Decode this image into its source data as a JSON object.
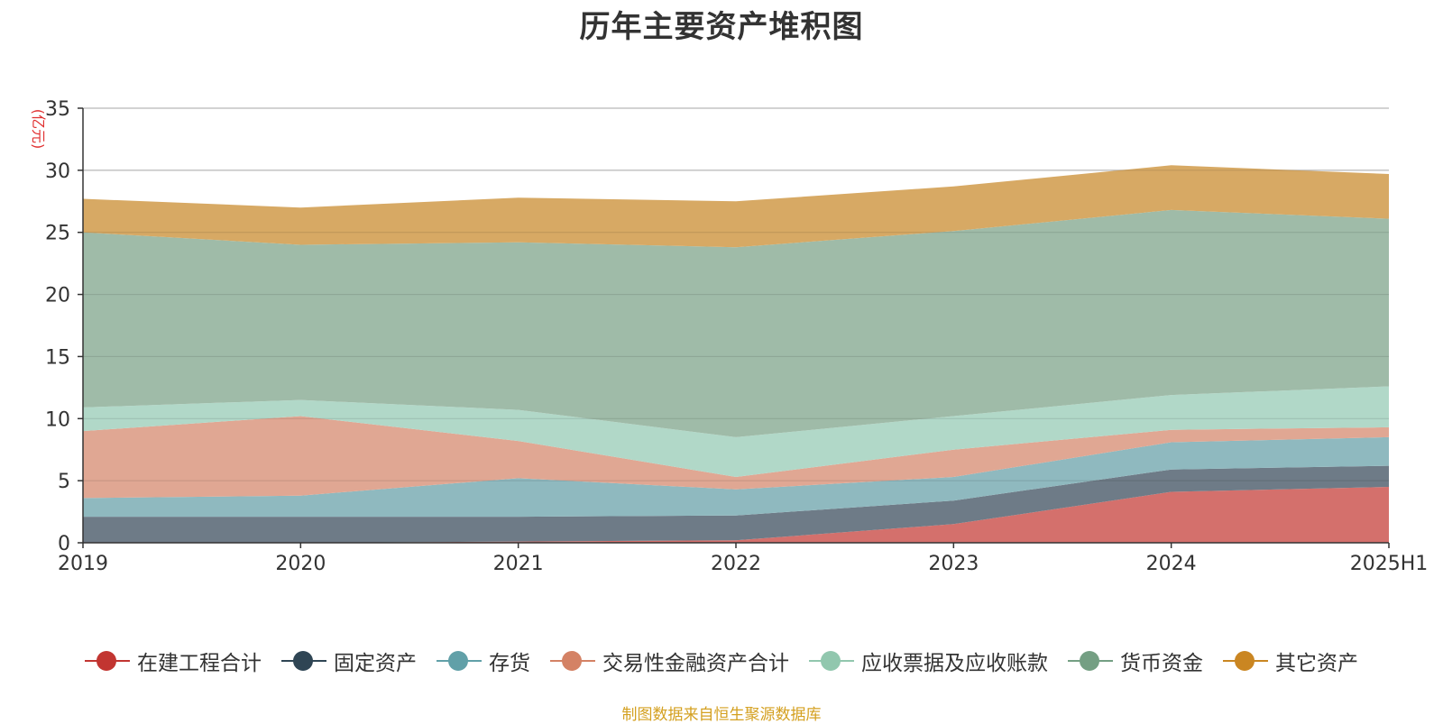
{
  "chart_data": {
    "type": "area",
    "stacked": true,
    "title": "历年主要资产堆积图",
    "ylabel": "(亿元)",
    "x": [
      "2019",
      "2020",
      "2021",
      "2022",
      "2023",
      "2024",
      "2025H1"
    ],
    "ylim": [
      0,
      35
    ],
    "yticks": [
      0,
      5,
      10,
      15,
      20,
      25,
      30,
      35
    ],
    "grid": true,
    "legend_position": "bottom",
    "series": [
      {
        "name": "在建工程合计",
        "color": "#c23531",
        "fill": "#d4706c",
        "values": [
          0.0,
          0.0,
          0.1,
          0.2,
          1.5,
          4.1,
          4.5
        ]
      },
      {
        "name": "固定资产",
        "color": "#2f4554",
        "fill": "#6e7b87",
        "values": [
          2.1,
          2.1,
          2.0,
          2.0,
          1.9,
          1.8,
          1.7
        ]
      },
      {
        "name": "存货",
        "color": "#61a0a8",
        "fill": "#8fb9bf",
        "values": [
          1.5,
          1.7,
          3.1,
          2.1,
          1.9,
          2.2,
          2.3
        ]
      },
      {
        "name": "交易性金融资产合计",
        "color": "#d48265",
        "fill": "#e0a793",
        "values": [
          5.4,
          6.4,
          3.0,
          1.0,
          2.2,
          1.0,
          0.8
        ]
      },
      {
        "name": "应收票据及应收账款",
        "color": "#91c7ae",
        "fill": "#b1d8c8",
        "values": [
          1.9,
          1.3,
          2.5,
          3.2,
          2.7,
          2.8,
          3.3
        ]
      },
      {
        "name": "货币资金",
        "color": "#749f83",
        "fill": "#9fbba8",
        "values": [
          14.1,
          12.5,
          13.5,
          15.3,
          14.9,
          14.9,
          13.5
        ]
      },
      {
        "name": "其它资产",
        "color": "#ca8622",
        "fill": "#d7a964",
        "values": [
          2.7,
          3.0,
          3.6,
          3.7,
          3.6,
          3.6,
          3.6
        ]
      }
    ]
  },
  "footer": "制图数据来自恒生聚源数据库"
}
